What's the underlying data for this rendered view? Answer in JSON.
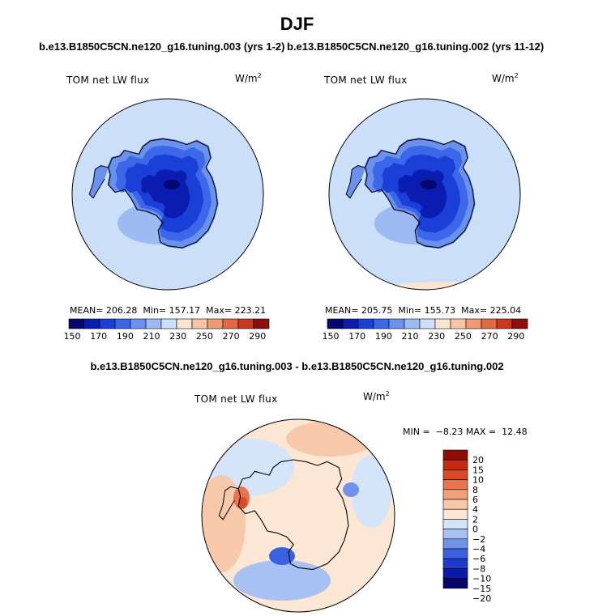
{
  "season": "DJF",
  "colors": {
    "seq": [
      "#05066e",
      "#0a1db0",
      "#1a3fd6",
      "#3c67e8",
      "#6a91ee",
      "#9dbaf2",
      "#cbe0f8",
      "#fbe4d2",
      "#f7c5a6",
      "#ef9a72",
      "#e06a44",
      "#c9391d",
      "#8b0f0c"
    ],
    "diff": [
      "#06066a",
      "#0a1aa8",
      "#1d3ccf",
      "#3a62e0",
      "#6f93ea",
      "#a6c1f2",
      "#d4e5f9",
      "#fce6d4",
      "#f8c8ab",
      "#f2a07a",
      "#e8744e",
      "#db4a26",
      "#c52b11",
      "#8e0d07"
    ],
    "land_line": "#000000",
    "circle_line": "#000000"
  },
  "panels": [
    {
      "case_title": "b.e13.B1850C5CN.ne120_g16.tuning.003 (yrs 1-2)",
      "var_label": "TOM net LW flux",
      "units": "W/m",
      "units_sup": "2",
      "mean_text": "MEAN= 206.28",
      "min_text": "Min= 157.17",
      "max_text": "Max= 223.21"
    },
    {
      "case_title": "b.e13.B1850C5CN.ne120_g16.tuning.002 (yrs 11-12)",
      "var_label": "TOM net LW flux",
      "units": "W/m",
      "units_sup": "2",
      "mean_text": "MEAN= 205.75",
      "min_text": "Min= 155.73",
      "max_text": "Max= 225.04"
    }
  ],
  "diff_panel": {
    "title": "b.e13.B1850C5CN.ne120_g16.tuning.003 - b.e13.B1850C5CN.ne120_g16.tuning.002",
    "var_label": "TOM net LW flux",
    "units": "W/m",
    "units_sup": "2",
    "minmax_text": "MIN =  −8.23 MAX =  12.48"
  },
  "chart_data": [
    {
      "type": "heatmap",
      "projection": "south-polar-stereographic",
      "title": "b.e13.B1850C5CN.ne120_g16.tuning.003 (yrs 1-2)",
      "variable": "TOM net LW flux",
      "units": "W/m2",
      "mean": 206.28,
      "min": 157.17,
      "max": 223.21,
      "colorbar_levels": [
        150,
        170,
        190,
        210,
        230,
        250,
        270,
        290
      ],
      "colorbar_labels": [
        "150",
        "170",
        "190",
        "210",
        "230",
        "250",
        "270",
        "290"
      ],
      "colorbar_orientation": "horizontal"
    },
    {
      "type": "heatmap",
      "projection": "south-polar-stereographic",
      "title": "b.e13.B1850C5CN.ne120_g16.tuning.002 (yrs 11-12)",
      "variable": "TOM net LW flux",
      "units": "W/m2",
      "mean": 205.75,
      "min": 155.73,
      "max": 225.04,
      "colorbar_levels": [
        150,
        170,
        190,
        210,
        230,
        250,
        270,
        290
      ],
      "colorbar_labels": [
        "150",
        "170",
        "190",
        "210",
        "230",
        "250",
        "270",
        "290"
      ],
      "colorbar_orientation": "horizontal"
    },
    {
      "type": "heatmap",
      "projection": "south-polar-stereographic",
      "title": "b.e13.B1850C5CN.ne120_g16.tuning.003 - b.e13.B1850C5CN.ne120_g16.tuning.002",
      "variable": "TOM net LW flux",
      "units": "W/m2",
      "min": -8.23,
      "max": 12.48,
      "colorbar_levels": [
        20,
        15,
        10,
        8,
        6,
        4,
        2,
        0,
        -2,
        -4,
        -6,
        -8,
        -10,
        -15,
        -20
      ],
      "colorbar_labels": [
        "20",
        "15",
        "10",
        "8",
        "6",
        "4",
        "2",
        "0",
        "−2",
        "−4",
        "−6",
        "−8",
        "−10",
        "−15",
        "−20"
      ],
      "colorbar_orientation": "vertical"
    }
  ]
}
